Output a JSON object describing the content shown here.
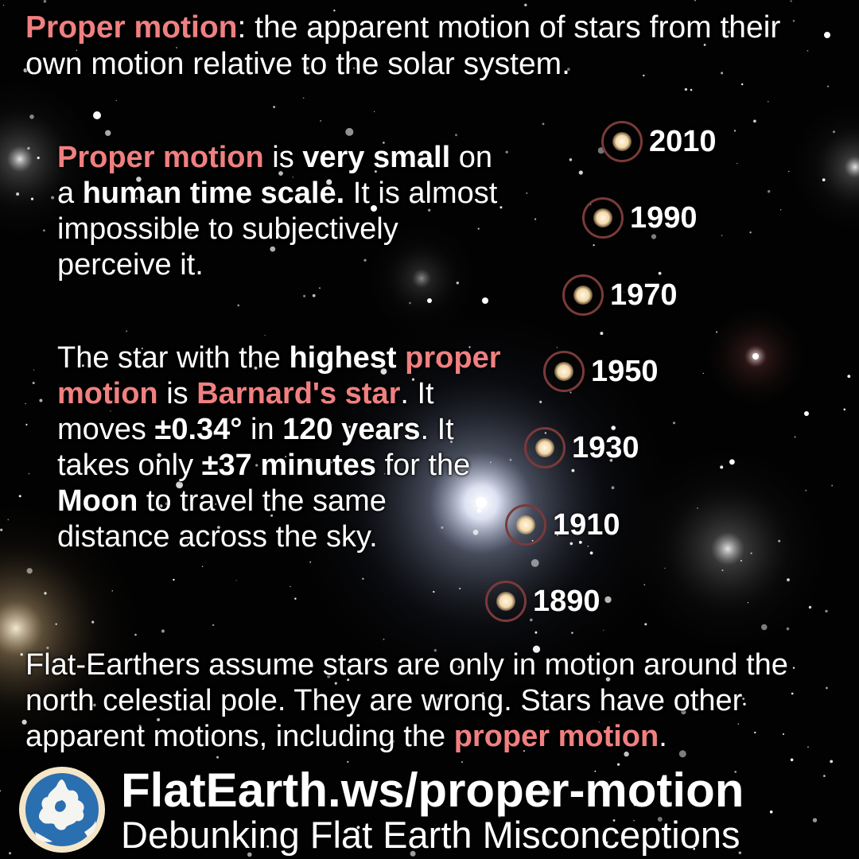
{
  "colors": {
    "highlight": "#f08080",
    "text": "#ffffff",
    "background": "#020202",
    "ring": "#7a3a3a",
    "logo_ring": "#f4e6c8",
    "logo_globe": "#2a6fb0"
  },
  "intro": {
    "term": "Proper motion",
    "definition": ": the apparent motion of stars from their own motion relative to the solar system."
  },
  "para1": {
    "s1": "Proper motion",
    "s2": " is ",
    "s3": "very small",
    "s4": " on a ",
    "s5": "human time scale.",
    "s6": " It is almost impossible to subjectively perceive it."
  },
  "para2": {
    "s1": "The star with the ",
    "s2": "highest",
    "s3": "proper motion",
    "s4": " is ",
    "s5": "Barnard's star",
    "s6": ". It moves ",
    "s7": "±0.34°",
    "s8": " in ",
    "s9": "120 years",
    "s10": ". It takes only ",
    "s11": "±37 minutes",
    "s12": " for the ",
    "s13": "Moon",
    "s14": " to travel the same distance across the sky."
  },
  "star_positions": [
    {
      "year": "2010"
    },
    {
      "year": "1990"
    },
    {
      "year": "1970"
    },
    {
      "year": "1950"
    },
    {
      "year": "1930"
    },
    {
      "year": "1910"
    },
    {
      "year": "1890"
    }
  ],
  "conclusion": {
    "s1": "Flat-Earthers assume stars are only in motion around the north celestial pole. They are wrong. Stars have other apparent motions, including the ",
    "s2": "proper motion",
    "s3": "."
  },
  "footer": {
    "url": "FlatEarth.ws/proper-motion",
    "tagline": "Debunking Flat Earth Misconceptions",
    "logo_icon": "globe-logo-icon"
  }
}
